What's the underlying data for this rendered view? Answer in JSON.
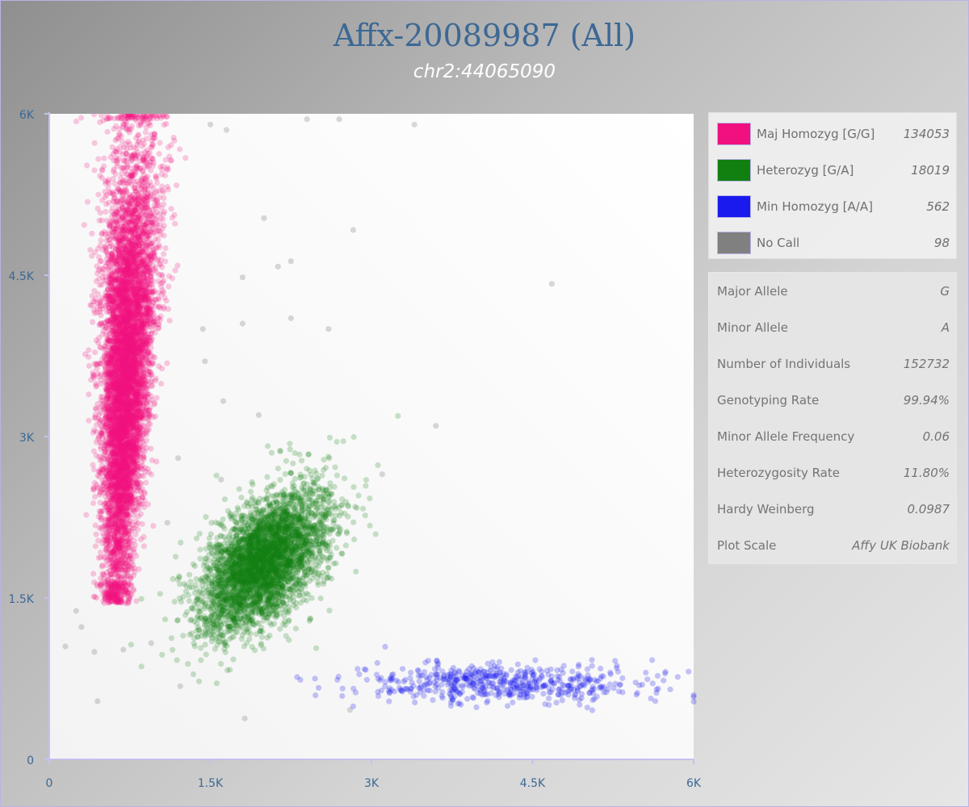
{
  "chart_data": {
    "type": "scatter",
    "title": "Affx-20089987 (All)",
    "subtitle": "chr2:44065090",
    "xlabel": "",
    "ylabel": "",
    "xlim": [
      0,
      6000
    ],
    "ylim": [
      0,
      6000
    ],
    "x_ticks": [
      "0",
      "1.5K",
      "3K",
      "4.5K",
      "6K"
    ],
    "y_ticks": [
      "0",
      "1.5K",
      "3K",
      "4.5K",
      "6K"
    ],
    "grid": false,
    "legend_position": "right",
    "series": [
      {
        "name": "Maj Homozyg [G/G]",
        "count": "134053",
        "color": "#f0107f",
        "cluster": {
          "x_mean": 620,
          "x_sd": 120,
          "y_mean": 3600,
          "y_sd": 1050,
          "y_range": [
            1450,
            6000
          ]
        }
      },
      {
        "name": "Heterozyg [G/A]",
        "count": "18019",
        "color": "#118011",
        "cluster": {
          "x_mean": 2000,
          "x_sd": 300,
          "y_mean": 1850,
          "y_sd": 330,
          "corr": 0.55
        }
      },
      {
        "name": "Min Homozyg [A/A]",
        "count": "562",
        "color": "#1a1aee",
        "cluster": {
          "x_mean": 4200,
          "x_sd": 700,
          "y_mean": 710,
          "y_sd": 90,
          "x_range": [
            2100,
            6000
          ]
        }
      },
      {
        "name": "No Call",
        "count": "98",
        "color": "#808080",
        "points": [
          [
            150,
            1050
          ],
          [
            250,
            1380
          ],
          [
            300,
            1230
          ],
          [
            420,
            1000
          ],
          [
            450,
            540
          ],
          [
            690,
            1020
          ],
          [
            950,
            1080
          ],
          [
            1220,
            680
          ],
          [
            1620,
            3330
          ],
          [
            1800,
            4480
          ],
          [
            1950,
            3200
          ],
          [
            2000,
            5030
          ],
          [
            2130,
            4580
          ],
          [
            2250,
            4630
          ],
          [
            2250,
            4100
          ],
          [
            2830,
            4920
          ],
          [
            4680,
            4420
          ],
          [
            3400,
            5900
          ],
          [
            2700,
            5950
          ],
          [
            1500,
            5900
          ],
          [
            1650,
            5850
          ],
          [
            1800,
            4050
          ],
          [
            1430,
            4000
          ],
          [
            1450,
            3700
          ],
          [
            2100,
            2300
          ],
          [
            3100,
            2650
          ],
          [
            1820,
            380
          ],
          [
            2800,
            460
          ],
          [
            1200,
            2800
          ],
          [
            1100,
            2200
          ],
          [
            1600,
            2600
          ],
          [
            2400,
            5950
          ],
          [
            3600,
            3100
          ],
          [
            2600,
            4000
          ]
        ]
      }
    ]
  },
  "legend": {
    "items": [
      {
        "label": "Maj Homozyg [G/G]",
        "count": "134053",
        "color": "#f0107f"
      },
      {
        "label": "Heterozyg [G/A]",
        "count": "18019",
        "color": "#118011"
      },
      {
        "label": "Min Homozyg [A/A]",
        "count": "562",
        "color": "#1a1aee"
      },
      {
        "label": "No Call",
        "count": "98",
        "color": "#808080"
      }
    ]
  },
  "stats": {
    "rows": [
      {
        "label": "Major Allele",
        "value": "G"
      },
      {
        "label": "Minor Allele",
        "value": "A"
      },
      {
        "label": "Number of Individuals",
        "value": "152732"
      },
      {
        "label": "Genotyping Rate",
        "value": "99.94%"
      },
      {
        "label": "Minor Allele Frequency",
        "value": "0.06"
      },
      {
        "label": "Heterozygosity Rate",
        "value": "11.80%"
      },
      {
        "label": "Hardy Weinberg",
        "value": "0.0987"
      },
      {
        "label": "Plot Scale",
        "value": "Affy UK Biobank"
      }
    ]
  }
}
